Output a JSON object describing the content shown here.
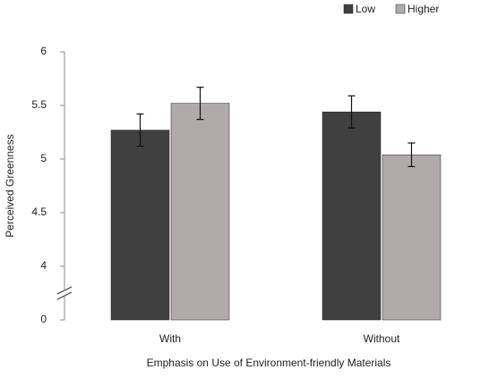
{
  "chart_data": {
    "type": "bar",
    "x_label": "Emphasis on Use of Environment-friendly Materials",
    "y_label": "Perceived Greenness",
    "categories": [
      "With",
      "Without"
    ],
    "series": [
      {
        "name": "Low",
        "color": "#404040",
        "values": [
          5.27,
          5.44
        ],
        "errors": [
          0.15,
          0.15
        ]
      },
      {
        "name": "Higher",
        "color": "#b0abab",
        "values": [
          5.52,
          5.04
        ],
        "errors": [
          0.15,
          0.11
        ]
      }
    ],
    "ylim": [
      0,
      6
    ],
    "yticks": [
      0,
      4,
      4.5,
      5,
      5.5,
      6
    ],
    "axis_break": [
      0,
      4
    ],
    "legend": "top-right"
  }
}
